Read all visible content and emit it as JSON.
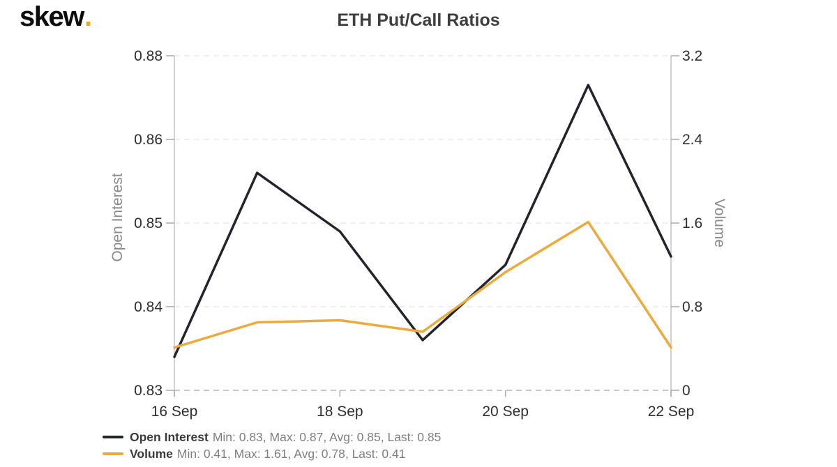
{
  "header": {
    "logo_text": "skew",
    "logo_dot": ".",
    "title": "ETH Put/Call Ratios"
  },
  "axes": {
    "left": {
      "title": "Open Interest",
      "ticks": [
        "0.88",
        "0.86",
        "0.85",
        "0.84",
        "0.83"
      ]
    },
    "right": {
      "title": "Volume",
      "ticks": [
        "3.2",
        "2.4",
        "1.6",
        "0.8",
        "0"
      ]
    },
    "x": {
      "ticks": [
        "16 Sep",
        "18 Sep",
        "20 Sep",
        "22 Sep"
      ]
    }
  },
  "legend": {
    "items": [
      {
        "label": "Open Interest",
        "stats": "Min: 0.83, Max: 0.87, Avg: 0.85, Last: 0.85",
        "color": "#23232d"
      },
      {
        "label": "Volume",
        "stats": "Min: 0.41, Max: 1.61, Avg: 0.78, Last: 0.41",
        "color": "#ecaa3d"
      }
    ]
  },
  "colors": {
    "open_interest_line": "#23232d",
    "volume_line": "#ecaa3d",
    "logo_dot": "#eea62f",
    "grid_line": "#eaeaea",
    "side_axis_line": "#c4c4c4",
    "bottom_axis_line": "#b3b3b3",
    "tick_mark": "#a8a8a8",
    "tick_label": "#2e2e2e"
  },
  "chart_data": {
    "type": "line",
    "title": "ETH Put/Call Ratios",
    "x": [
      "16 Sep",
      "17 Sep",
      "18 Sep",
      "19 Sep",
      "20 Sep",
      "21 Sep",
      "22 Sep"
    ],
    "x_tick_labels": [
      "16 Sep",
      "18 Sep",
      "20 Sep",
      "22 Sep"
    ],
    "series": [
      {
        "name": "Open Interest",
        "axis": "left",
        "color": "#23232d",
        "values": [
          0.834,
          0.856,
          0.849,
          0.836,
          0.845,
          0.873,
          0.846
        ]
      },
      {
        "name": "Volume",
        "axis": "right",
        "color": "#ecaa3d",
        "values": [
          0.41,
          0.65,
          0.67,
          0.56,
          1.13,
          1.61,
          0.41
        ]
      }
    ],
    "left_axis": {
      "label": "Open Interest",
      "tick_values": [
        0.88,
        0.86,
        0.85,
        0.84,
        0.83
      ]
    },
    "right_axis": {
      "label": "Volume",
      "tick_values": [
        3.2,
        2.4,
        1.6,
        0.8,
        0
      ],
      "range": [
        0,
        3.2
      ]
    },
    "grid": true,
    "legend_position": "bottom-left"
  }
}
